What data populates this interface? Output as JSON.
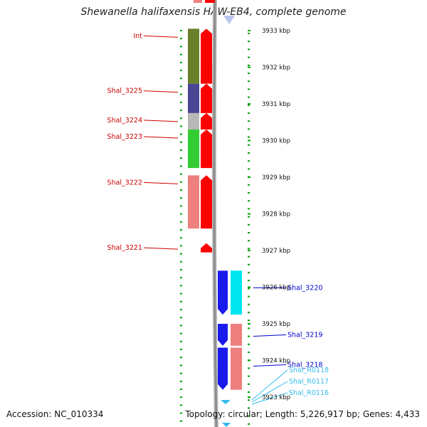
{
  "title": "Shewanella halifaxensis HAW-EB4, complete genome",
  "accession": "Accession: NC_010334",
  "topology": "Topology: circular; Length: 5,226,917 bp; Genes: 4,433",
  "scale": [
    {
      "label": "3933 kbp",
      "kbp": 3933
    },
    {
      "label": "3932 kbp",
      "kbp": 3932
    },
    {
      "label": "3931 kbp",
      "kbp": 3931
    },
    {
      "label": "3930 kbp",
      "kbp": 3930
    },
    {
      "label": "3929 kbp",
      "kbp": 3929
    },
    {
      "label": "3928 kbp",
      "kbp": 3928
    },
    {
      "label": "3927 kbp",
      "kbp": 3927
    },
    {
      "label": "3926 kbp",
      "kbp": 3926
    },
    {
      "label": "3925 kbp",
      "kbp": 3925
    },
    {
      "label": "3924 kbp",
      "kbp": 3924
    },
    {
      "label": "3923 kbp",
      "kbp": 3923
    }
  ],
  "left_genes": [
    {
      "name": "Int",
      "color": "#6b7f2a",
      "start_kbp": 3933.05,
      "end_kbp": 3931.55
    },
    {
      "name": "Shal_3225",
      "color": "#4b4594",
      "start_kbp": 3931.55,
      "end_kbp": 3930.75
    },
    {
      "name": "Shal_3224",
      "color": "#b8b8b8",
      "start_kbp": 3930.75,
      "end_kbp": 3930.3
    },
    {
      "name": "Shal_3223",
      "color": "#33cc33",
      "start_kbp": 3930.3,
      "end_kbp": 3929.25
    },
    {
      "name": "Shal_3222",
      "color": "#ee7f7f",
      "start_kbp": 3929.05,
      "end_kbp": 3927.6
    },
    {
      "name": "Shal_3221",
      "color": "#ff0000",
      "start_kbp": 3927.2,
      "end_kbp": 3926.95
    }
  ],
  "right_genes": [
    {
      "name": "Shal_3220",
      "color": "#00e6f0",
      "start_kbp": 3926.45,
      "end_kbp": 3925.25
    },
    {
      "name": "Shal_3219",
      "color": "#ee7f7f",
      "start_kbp": 3925.0,
      "end_kbp": 3924.4
    },
    {
      "name": "Shal_3218",
      "color": "#ee7f7f",
      "start_kbp": 3924.35,
      "end_kbp": 3923.2
    },
    {
      "name": "Shal_R0118",
      "color": "#33ccee",
      "start_kbp": 3923.0,
      "end_kbp": 3922.8
    },
    {
      "name": "Shal_R0117",
      "color": "#33ccee",
      "start_kbp": 3922.8,
      "end_kbp": 3922.65
    },
    {
      "name": "Shal_R0116",
      "color": "#33ccee",
      "start_kbp": 3922.65,
      "end_kbp": 3922.5
    }
  ],
  "colors": {
    "left_label": "#cc0000",
    "right_label": "#0000cc",
    "rna_label": "#33bbee",
    "forward_strand": "#ff0000",
    "reverse_strand": "#1a1aee",
    "ticks": "#00a000",
    "backbone": "#8c8c8c"
  }
}
